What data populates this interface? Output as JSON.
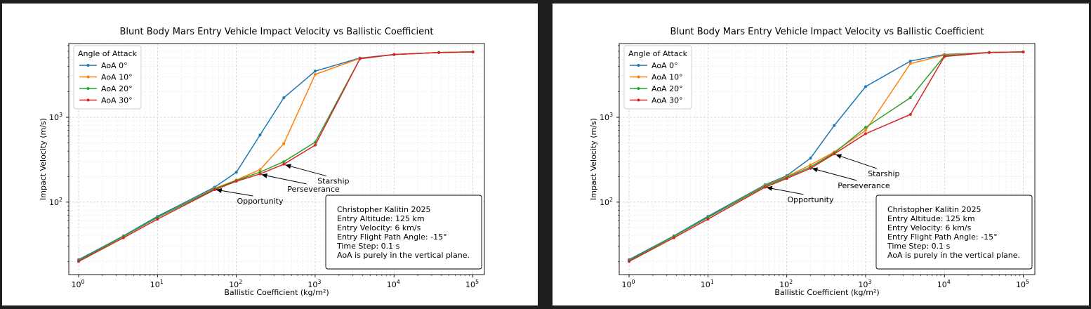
{
  "chart_data": [
    {
      "type": "line",
      "title": "Blunt Body Mars Entry Vehicle Impact Velocity vs Ballistic Coefficient",
      "xlabel": "Ballistic Coefficient (kg/m²)",
      "ylabel": "Impact Velocity (m/s)",
      "xscale": "log",
      "yscale": "log",
      "xlim": [
        0.75,
        140000
      ],
      "ylim": [
        14,
        7400
      ],
      "xticks": [
        {
          "base": "10",
          "exp": "0"
        },
        {
          "base": "10",
          "exp": "1"
        },
        {
          "base": "10",
          "exp": "2"
        },
        {
          "base": "10",
          "exp": "3"
        },
        {
          "base": "10",
          "exp": "4"
        },
        {
          "base": "10",
          "exp": "5"
        }
      ],
      "yticks": [
        {
          "base": "10",
          "exp": "2"
        },
        {
          "base": "10",
          "exp": "3"
        }
      ],
      "grid": true,
      "legend": {
        "title": "Angle of Attack",
        "placement": "top-left"
      },
      "x": [
        1,
        3.7,
        10,
        53,
        100,
        200,
        400,
        1000,
        3700,
        10000,
        37000,
        100000
      ],
      "series": [
        {
          "name": "AoA 0°",
          "color": "#1f77b4",
          "values": [
            21,
            40,
            68,
            150,
            225,
            620,
            1700,
            3500,
            5000,
            5500,
            5800,
            5900
          ]
        },
        {
          "name": "AoA 10°",
          "color": "#ff7f0e",
          "values": [
            20.5,
            39.5,
            66,
            145,
            182,
            242,
            490,
            3200,
            4950,
            5500,
            5800,
            5900
          ]
        },
        {
          "name": "AoA 20°",
          "color": "#2ca02c",
          "values": [
            20.5,
            39.5,
            66,
            143,
            180,
            226,
            300,
            510,
            4900,
            5500,
            5800,
            5900
          ]
        },
        {
          "name": "AoA 30°",
          "color": "#d62728",
          "values": [
            20,
            38,
            63,
            140,
            176,
            215,
            280,
            470,
            4900,
            5500,
            5800,
            5900
          ]
        }
      ],
      "annotations": [
        {
          "text": "Opportunity",
          "x": 53,
          "y": 143,
          "text_x": 200,
          "text_y": 96
        },
        {
          "text": "Perseverance",
          "x": 200,
          "y": 215,
          "text_x": 950,
          "text_y": 133
        },
        {
          "text": "Starship",
          "x": 400,
          "y": 280,
          "text_x": 1700,
          "text_y": 165
        }
      ],
      "info_box": [
        "Christopher Kalitin 2025",
        "Entry Altitude: 125 km",
        "Entry Velocity: 6 km/s",
        "Entry Flight Path Angle: -15°",
        "Time Step: 0.1 s",
        "AoA is purely in the vertical plane."
      ]
    },
    {
      "type": "line",
      "title": "Blunt Body Mars Entry Vehicle Impact Velocity vs Ballistic Coefficient",
      "xlabel": "Ballistic Coefficient (kg/m²)",
      "ylabel": "Impact Velocity (m/s)",
      "xscale": "log",
      "yscale": "log",
      "xlim": [
        0.75,
        140000
      ],
      "ylim": [
        14,
        7400
      ],
      "xticks": [
        {
          "base": "10",
          "exp": "0"
        },
        {
          "base": "10",
          "exp": "1"
        },
        {
          "base": "10",
          "exp": "2"
        },
        {
          "base": "10",
          "exp": "3"
        },
        {
          "base": "10",
          "exp": "4"
        },
        {
          "base": "10",
          "exp": "5"
        }
      ],
      "yticks": [
        {
          "base": "10",
          "exp": "2"
        },
        {
          "base": "10",
          "exp": "3"
        }
      ],
      "grid": true,
      "legend": {
        "title": "Angle of Attack",
        "placement": "top-left"
      },
      "x": [
        1,
        3.7,
        10,
        53,
        100,
        200,
        400,
        1000,
        3700,
        10000,
        37000,
        100000
      ],
      "series": [
        {
          "name": "AoA 0°",
          "color": "#1f77b4",
          "values": [
            21,
            40,
            68,
            160,
            205,
            330,
            800,
            2300,
            4600,
            5500,
            5800,
            5900
          ]
        },
        {
          "name": "AoA 10°",
          "color": "#ff7f0e",
          "values": [
            20.5,
            39.5,
            66,
            157,
            200,
            275,
            390,
            700,
            4300,
            5400,
            5800,
            5900
          ]
        },
        {
          "name": "AoA 20°",
          "color": "#2ca02c",
          "values": [
            20.5,
            39.5,
            66,
            155,
            196,
            260,
            380,
            760,
            1700,
            5300,
            5800,
            5900
          ]
        },
        {
          "name": "AoA 30°",
          "color": "#d62728",
          "values": [
            20,
            38,
            63,
            150,
            190,
            250,
            370,
            640,
            1080,
            5200,
            5800,
            5900
          ]
        }
      ],
      "annotations": [
        {
          "text": "Opportunity",
          "x": 53,
          "y": 152,
          "text_x": 200,
          "text_y": 100
        },
        {
          "text": "Perseverance",
          "x": 200,
          "y": 255,
          "text_x": 950,
          "text_y": 146
        },
        {
          "text": "Starship",
          "x": 400,
          "y": 370,
          "text_x": 1700,
          "text_y": 202
        }
      ],
      "info_box": [
        "Christopher Kalitin 2025",
        "Entry Altitude: 125 km",
        "Entry Velocity: 6 km/s",
        "Entry Flight Path Angle: -15°",
        "Time Step: 0.1 s",
        "AoA is purely in the vertical plane."
      ]
    }
  ]
}
